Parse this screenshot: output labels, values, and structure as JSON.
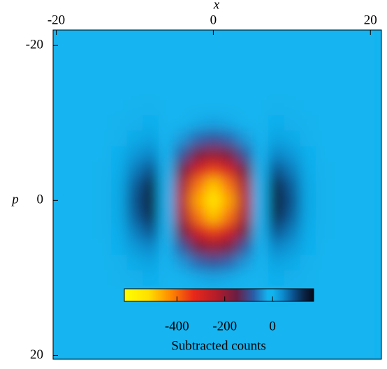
{
  "chart_data": {
    "type": "heatmap",
    "xlabel": "x",
    "ylabel": "p",
    "x": [
      -20,
      -18,
      -16,
      -14,
      -12,
      -10,
      -8,
      -6,
      -4,
      -2,
      0,
      2,
      4,
      6,
      8,
      10,
      12,
      14,
      16,
      18,
      20
    ],
    "y": [
      -22,
      -20,
      -18,
      -16,
      -14,
      -12,
      -10,
      -8,
      -6,
      -4,
      -2,
      0,
      2,
      4,
      6,
      8,
      10,
      12,
      14,
      16,
      18,
      20
    ],
    "z": [
      [
        0,
        0,
        0,
        0,
        0,
        0,
        0,
        0,
        0,
        0,
        0,
        0,
        0,
        0,
        0,
        0,
        0,
        0,
        0,
        0,
        0
      ],
      [
        0,
        0,
        0,
        0,
        0,
        0,
        0,
        0,
        0,
        0,
        0,
        0,
        0,
        0,
        0,
        0,
        0,
        0,
        0,
        0,
        0
      ],
      [
        0,
        0,
        0,
        0,
        0,
        0,
        0,
        0,
        0,
        0,
        0,
        0,
        0,
        0,
        0,
        0,
        0,
        0,
        0,
        0,
        0
      ],
      [
        0,
        0,
        0,
        0,
        0,
        0,
        0,
        0,
        0,
        0,
        0,
        0,
        0,
        0,
        0,
        0,
        0,
        0,
        0,
        0,
        0
      ],
      [
        0,
        0,
        0,
        0,
        0,
        0,
        0,
        0,
        -1,
        -2,
        -2,
        -2,
        -1,
        0,
        0,
        0,
        0,
        0,
        0,
        0,
        0
      ],
      [
        0,
        0,
        0,
        0,
        0,
        1,
        2,
        -1,
        -4,
        -8,
        -9,
        -8,
        -4,
        -1,
        2,
        1,
        0,
        0,
        0,
        0,
        0
      ],
      [
        0,
        0,
        0,
        0,
        1,
        4,
        6,
        -2,
        -14,
        -27,
        -32,
        -27,
        -14,
        -2,
        6,
        4,
        1,
        0,
        0,
        0,
        0
      ],
      [
        0,
        0,
        0,
        0,
        2,
        11,
        19,
        -3,
        -39,
        -74,
        -90,
        -74,
        -39,
        -3,
        19,
        11,
        2,
        0,
        0,
        0,
        0
      ],
      [
        0,
        0,
        0,
        0,
        5,
        29,
        46,
        -4,
        -86,
        -164,
        -199,
        -164,
        -86,
        -4,
        46,
        29,
        5,
        0,
        0,
        0,
        0
      ],
      [
        0,
        0,
        0,
        1,
        8,
        53,
        88,
        -4,
        -152,
        -287,
        -349,
        -287,
        -152,
        -4,
        88,
        53,
        8,
        1,
        0,
        0,
        0
      ],
      [
        0,
        0,
        0,
        1,
        12,
        77,
        129,
        -4,
        -213,
        -404,
        -491,
        -404,
        -213,
        -4,
        129,
        77,
        12,
        1,
        0,
        0,
        0
      ],
      [
        0,
        0,
        0,
        1,
        14,
        88,
        146,
        -3,
        -238,
        -452,
        -550,
        -452,
        -238,
        -3,
        146,
        88,
        14,
        1,
        0,
        0,
        0
      ],
      [
        0,
        0,
        0,
        1,
        12,
        77,
        129,
        -4,
        -213,
        -404,
        -491,
        -404,
        -213,
        -4,
        129,
        77,
        12,
        1,
        0,
        0,
        0
      ],
      [
        0,
        0,
        0,
        1,
        8,
        53,
        88,
        -4,
        -152,
        -287,
        -349,
        -287,
        -152,
        -4,
        88,
        53,
        8,
        1,
        0,
        0,
        0
      ],
      [
        0,
        0,
        0,
        0,
        5,
        29,
        46,
        -4,
        -86,
        -164,
        -199,
        -164,
        -86,
        -4,
        46,
        29,
        5,
        0,
        0,
        0,
        0
      ],
      [
        0,
        0,
        0,
        0,
        2,
        11,
        19,
        -3,
        -39,
        -74,
        -90,
        -74,
        -39,
        -3,
        19,
        11,
        2,
        0,
        0,
        0,
        0
      ],
      [
        0,
        0,
        0,
        0,
        1,
        4,
        6,
        -2,
        -14,
        -27,
        -32,
        -27,
        -14,
        -2,
        6,
        4,
        1,
        0,
        0,
        0,
        0
      ],
      [
        0,
        0,
        0,
        0,
        0,
        1,
        2,
        -1,
        -4,
        -8,
        -9,
        -8,
        -4,
        -1,
        2,
        1,
        0,
        0,
        0,
        0,
        0
      ],
      [
        0,
        0,
        0,
        0,
        0,
        0,
        0,
        0,
        -1,
        -2,
        -2,
        -2,
        -1,
        0,
        0,
        0,
        0,
        0,
        0,
        0,
        0
      ],
      [
        0,
        0,
        0,
        0,
        0,
        0,
        0,
        0,
        0,
        0,
        0,
        0,
        0,
        0,
        0,
        0,
        0,
        0,
        0,
        0,
        0
      ],
      [
        0,
        0,
        0,
        0,
        0,
        0,
        0,
        0,
        0,
        0,
        0,
        0,
        0,
        0,
        0,
        0,
        0,
        0,
        0,
        0,
        0
      ],
      [
        0,
        0,
        0,
        0,
        0,
        0,
        0,
        0,
        0,
        0,
        0,
        0,
        0,
        0,
        0,
        0,
        0,
        0,
        0,
        0,
        0
      ]
    ],
    "xlim": [
      -20.4,
      21.4
    ],
    "ylim": [
      -22,
      20.5
    ],
    "xticks": [
      -20,
      0,
      20
    ],
    "yticks": [
      -20,
      0,
      20
    ],
    "colorscale": [
      [
        -620,
        "#ffff00"
      ],
      [
        -520,
        "#ffe000"
      ],
      [
        -430,
        "#ff8c00"
      ],
      [
        -330,
        "#e8281a"
      ],
      [
        -230,
        "#b01c2a"
      ],
      [
        -150,
        "#6a1e44"
      ],
      [
        -80,
        "#2a5ca8"
      ],
      [
        -20,
        "#12b4f0"
      ],
      [
        0,
        "#12b4f0"
      ],
      [
        40,
        "#0d8ed0"
      ],
      [
        90,
        "#0b4f8a"
      ],
      [
        130,
        "#0a2548"
      ],
      [
        172,
        "#050a18"
      ]
    ],
    "clim": [
      -620,
      172
    ],
    "cticks": [
      -400,
      -200,
      0
    ],
    "colorbar_label": "Subtracted counts"
  }
}
